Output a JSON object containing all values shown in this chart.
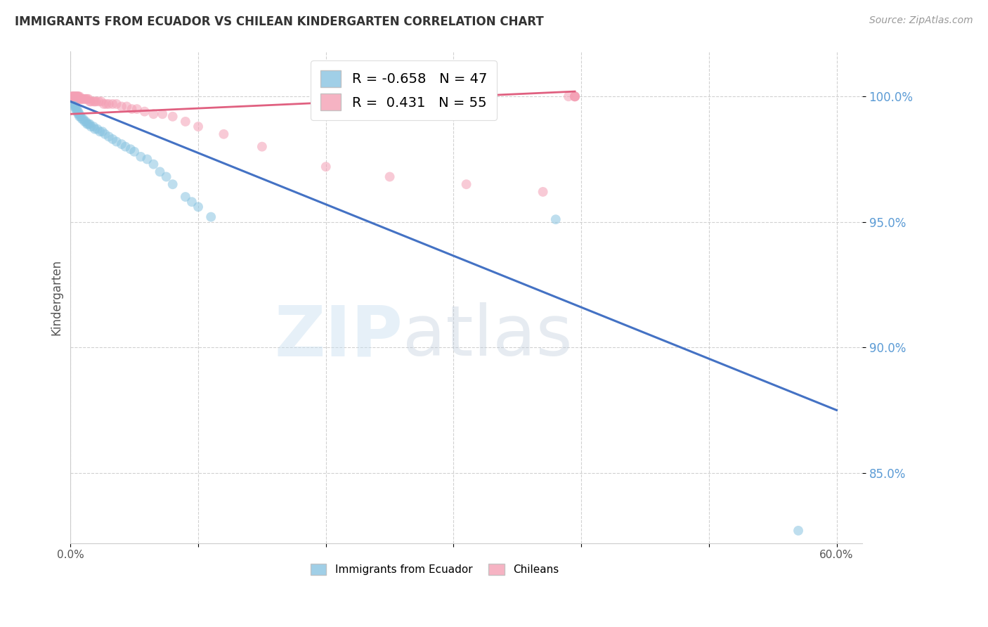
{
  "title": "IMMIGRANTS FROM ECUADOR VS CHILEAN KINDERGARTEN CORRELATION CHART",
  "source": "Source: ZipAtlas.com",
  "ylabel": "Kindergarten",
  "ytick_labels": [
    "100.0%",
    "95.0%",
    "90.0%",
    "85.0%"
  ],
  "ytick_values": [
    1.0,
    0.95,
    0.9,
    0.85
  ],
  "xlim": [
    0.0,
    0.62
  ],
  "ylim": [
    0.822,
    1.018
  ],
  "legend_blue_r": "-0.658",
  "legend_blue_n": "47",
  "legend_pink_r": "0.431",
  "legend_pink_n": "55",
  "blue_color": "#89c4e1",
  "pink_color": "#f4a0b5",
  "blue_line_color": "#4472c4",
  "pink_line_color": "#e06080",
  "watermark_zip": "ZIP",
  "watermark_atlas": "atlas",
  "blue_line_x": [
    0.0,
    0.6
  ],
  "blue_line_y": [
    0.998,
    0.875
  ],
  "pink_line_x": [
    0.0,
    0.395
  ],
  "pink_line_y": [
    0.993,
    1.002
  ],
  "blue_scatter_x": [
    0.001,
    0.002,
    0.002,
    0.003,
    0.003,
    0.004,
    0.004,
    0.005,
    0.005,
    0.006,
    0.006,
    0.007,
    0.007,
    0.008,
    0.009,
    0.01,
    0.011,
    0.012,
    0.013,
    0.014,
    0.015,
    0.016,
    0.018,
    0.019,
    0.021,
    0.023,
    0.025,
    0.027,
    0.03,
    0.033,
    0.036,
    0.04,
    0.043,
    0.047,
    0.05,
    0.055,
    0.06,
    0.065,
    0.07,
    0.075,
    0.08,
    0.09,
    0.095,
    0.1,
    0.11,
    0.38,
    0.57
  ],
  "blue_scatter_y": [
    0.999,
    0.998,
    0.997,
    0.997,
    0.996,
    0.996,
    0.995,
    0.995,
    0.994,
    0.994,
    0.993,
    0.993,
    0.992,
    0.992,
    0.991,
    0.991,
    0.99,
    0.99,
    0.989,
    0.989,
    0.989,
    0.988,
    0.988,
    0.987,
    0.987,
    0.986,
    0.986,
    0.985,
    0.984,
    0.983,
    0.982,
    0.981,
    0.98,
    0.979,
    0.978,
    0.976,
    0.975,
    0.973,
    0.97,
    0.968,
    0.965,
    0.96,
    0.958,
    0.956,
    0.952,
    0.951,
    0.827
  ],
  "pink_scatter_x": [
    0.001,
    0.001,
    0.002,
    0.002,
    0.003,
    0.003,
    0.004,
    0.004,
    0.005,
    0.005,
    0.006,
    0.006,
    0.007,
    0.007,
    0.008,
    0.008,
    0.009,
    0.01,
    0.011,
    0.012,
    0.013,
    0.014,
    0.015,
    0.016,
    0.018,
    0.019,
    0.02,
    0.022,
    0.024,
    0.026,
    0.028,
    0.03,
    0.033,
    0.036,
    0.04,
    0.044,
    0.048,
    0.052,
    0.058,
    0.065,
    0.072,
    0.08,
    0.09,
    0.1,
    0.12,
    0.15,
    0.2,
    0.25,
    0.31,
    0.37,
    0.39,
    0.395,
    0.395,
    0.395,
    0.395
  ],
  "pink_scatter_y": [
    1.0,
    1.0,
    1.0,
    1.0,
    1.0,
    1.0,
    1.0,
    1.0,
    1.0,
    1.0,
    1.0,
    1.0,
    1.0,
    0.999,
    0.999,
    0.999,
    0.999,
    0.999,
    0.999,
    0.999,
    0.999,
    0.999,
    0.998,
    0.998,
    0.998,
    0.998,
    0.998,
    0.998,
    0.998,
    0.997,
    0.997,
    0.997,
    0.997,
    0.997,
    0.996,
    0.996,
    0.995,
    0.995,
    0.994,
    0.993,
    0.993,
    0.992,
    0.99,
    0.988,
    0.985,
    0.98,
    0.972,
    0.968,
    0.965,
    0.962,
    1.0,
    1.0,
    1.0,
    1.0,
    1.0
  ]
}
